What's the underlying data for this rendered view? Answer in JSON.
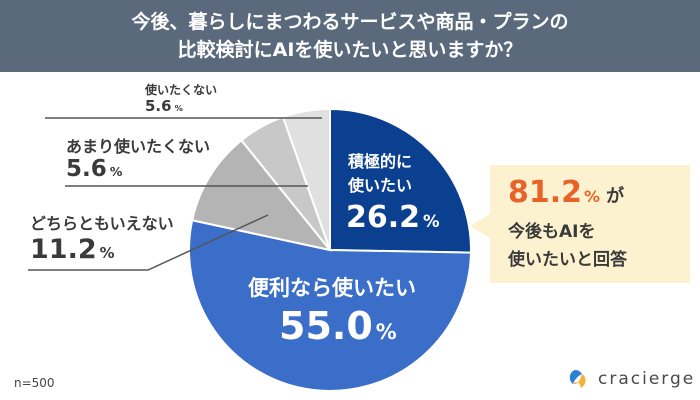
{
  "header": {
    "line1": "今後、暮らしにまつわるサービスや商品・プランの",
    "line2": "比較検討にAIを使いたいと思いますか？"
  },
  "chart_data": {
    "type": "pie",
    "categories": [
      "積極的に使いたい",
      "便利なら使いたい",
      "どちらともいえない",
      "あまり使いたくない",
      "使いたくない"
    ],
    "values": [
      26.2,
      55.0,
      11.2,
      5.6,
      5.6
    ],
    "unit": "%",
    "colors": [
      "#0b3f8f",
      "#3b6ec8",
      "#b4b4b4",
      "#c8c8c8",
      "#e0e0e0"
    ],
    "labels": {
      "active": {
        "line1": "積極的に",
        "line2": "使いたい",
        "value": "26.2",
        "unit": "%"
      },
      "convenient": {
        "line1": "便利なら使いたい",
        "value": "55.0",
        "unit": "%"
      },
      "neutral": {
        "line1": "どちらともいえない",
        "value": "11.2",
        "unit": "%"
      },
      "rather_not": {
        "line1": "あまり使いたくない",
        "value": "5.6",
        "unit": "%"
      },
      "not_use": {
        "line1": "使いたくない",
        "value": "5.6",
        "unit": "%"
      }
    }
  },
  "callout": {
    "value": "81.2",
    "unit": "%",
    "particle": "が",
    "line2": "今後もAIを",
    "line3": "使いたいと回答",
    "highlight_color": "#e8632a"
  },
  "footer": {
    "sample": "n=500",
    "brand": "cracierge"
  }
}
